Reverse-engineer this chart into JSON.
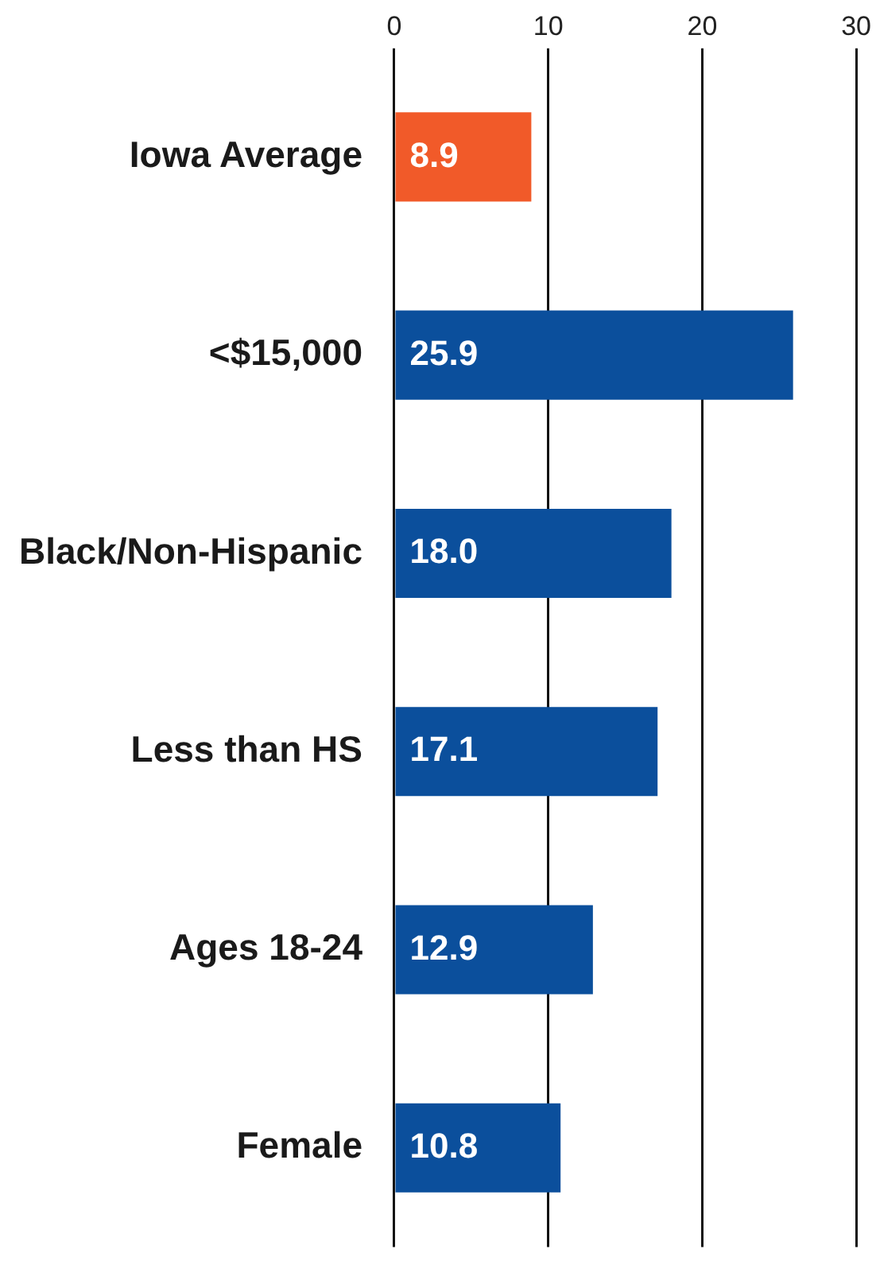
{
  "chart_data": {
    "type": "bar",
    "orientation": "horizontal",
    "categories": [
      "Iowa Average",
      "<$15,000",
      "Black/Non-Hispanic",
      "Less than HS",
      "Ages 18-24",
      "Female"
    ],
    "values": [
      8.9,
      25.9,
      18.0,
      17.1,
      12.9,
      10.8
    ],
    "value_labels": [
      "8.9",
      "25.9",
      "18.0",
      "17.1",
      "12.9",
      "10.8"
    ],
    "colors": [
      "#f15a29",
      "#0b4f9c",
      "#0b4f9c",
      "#0b4f9c",
      "#0b4f9c",
      "#0b4f9c"
    ],
    "xlim": [
      0,
      30
    ],
    "xticks": [
      0,
      10,
      20,
      30
    ],
    "grid": "x",
    "legend": false
  }
}
